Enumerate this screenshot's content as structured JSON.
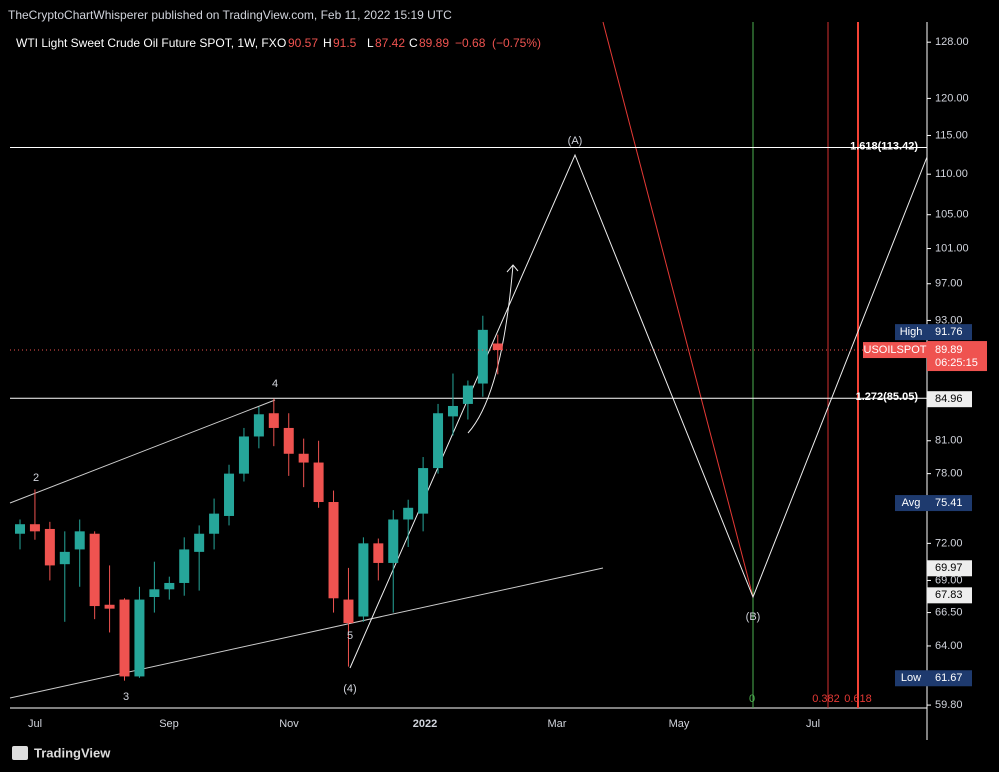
{
  "header": {
    "published": "TheCryptoChartWhisperer published on TradingView.com, Feb 11, 2022 15:19 UTC",
    "brand": "TradingView"
  },
  "chart_data": {
    "type": "candlestick",
    "title": "WTI Light Sweet Crude Oil Future SPOT, 1W, FX",
    "ohlc_labels": {
      "open": "O",
      "high": "H",
      "low": "L",
      "close": "C"
    },
    "change": "−0.68",
    "change_pct": "(−0.75%)",
    "open": [
      72.8,
      73.6,
      73.2,
      70.3,
      71.5,
      72.8,
      67.1,
      67.5,
      61.8,
      67.7,
      68.3,
      68.8,
      71.3,
      72.8,
      74.3,
      78.0,
      81.4,
      83.6,
      82.2,
      79.8,
      79.0,
      75.5,
      67.5,
      66.2,
      72.0,
      70.4,
      74.0,
      74.5,
      78.5,
      83.3,
      84.5,
      86.5,
      90.57
    ],
    "high": [
      74.0,
      76.6,
      73.8,
      73.0,
      74.0,
      73.0,
      70.2,
      67.6,
      68.5,
      70.5,
      69.3,
      72.5,
      73.5,
      75.8,
      78.8,
      82.2,
      84.2,
      85.0,
      83.6,
      81.2,
      81.0,
      76.5,
      70.0,
      72.5,
      72.4,
      74.8,
      75.7,
      79.5,
      84.5,
      87.5,
      86.8,
      93.5,
      91.5
    ],
    "low": [
      71.5,
      72.3,
      69.0,
      65.8,
      68.5,
      66.0,
      65.0,
      61.5,
      61.7,
      66.5,
      67.5,
      67.8,
      68.2,
      71.5,
      73.5,
      77.3,
      80.3,
      80.5,
      77.8,
      76.8,
      75.0,
      66.5,
      62.5,
      65.8,
      69.0,
      66.5,
      71.7,
      73.0,
      78.0,
      81.5,
      83.0,
      85.2,
      87.42
    ],
    "close": [
      73.6,
      73.0,
      70.2,
      71.3,
      73.0,
      67.0,
      66.8,
      61.8,
      67.5,
      68.3,
      68.8,
      71.5,
      72.8,
      74.5,
      78.0,
      81.4,
      83.5,
      82.2,
      79.8,
      79.0,
      75.5,
      67.6,
      65.7,
      72.0,
      70.4,
      74.0,
      75.0,
      78.5,
      83.6,
      84.3,
      86.3,
      92.0,
      89.89
    ],
    "up_color": "#26a69a",
    "down_color": "#ef5350",
    "log_scale": true,
    "ylim": [
      59.6,
      131
    ],
    "yticks": [
      {
        "value": 128,
        "label": "128.00"
      },
      {
        "value": 120,
        "label": "120.00"
      },
      {
        "value": 115,
        "label": "115.00"
      },
      {
        "value": 110,
        "label": "110.00"
      },
      {
        "value": 105,
        "label": "105.00"
      },
      {
        "value": 101,
        "label": "101.00"
      },
      {
        "value": 97,
        "label": "97.00"
      },
      {
        "value": 93,
        "label": "93.00"
      },
      {
        "value": 81,
        "label": "81.00"
      },
      {
        "value": 78,
        "label": "78.00"
      },
      {
        "value": 72,
        "label": "72.00"
      },
      {
        "value": 69,
        "label": "69.00"
      },
      {
        "value": 66.5,
        "label": "66.50"
      },
      {
        "value": 64,
        "label": "64.00"
      },
      {
        "value": 59.8,
        "label": "59.80"
      }
    ],
    "xlabels": [
      "Jul",
      "Sep",
      "Nov",
      "2022",
      "Mar",
      "May",
      "Jul"
    ],
    "symbol": "USOILSPOT",
    "countdown": "06:25:15",
    "tags": [
      {
        "name": "High",
        "value": 91.76,
        "color": "#1e3a6e"
      },
      {
        "name": "Avg",
        "value": 75.41,
        "color": "#1e3a6e"
      },
      {
        "name": "Low",
        "value": 61.67,
        "color": "#1e3a6e"
      }
    ],
    "levels": [
      {
        "value": 84.96
      },
      {
        "value": 69.97
      },
      {
        "value": 67.83
      }
    ],
    "fib_lines": [
      {
        "value": 113.42,
        "label": "1.618(113.42)"
      },
      {
        "value": 85.05,
        "label": "1.272(85.05)"
      }
    ],
    "fib_time": [
      "0",
      "0.382",
      "0.618"
    ],
    "waves": [
      "2",
      "4",
      "3",
      "5",
      "(4)",
      "(A)",
      "(B)"
    ]
  }
}
